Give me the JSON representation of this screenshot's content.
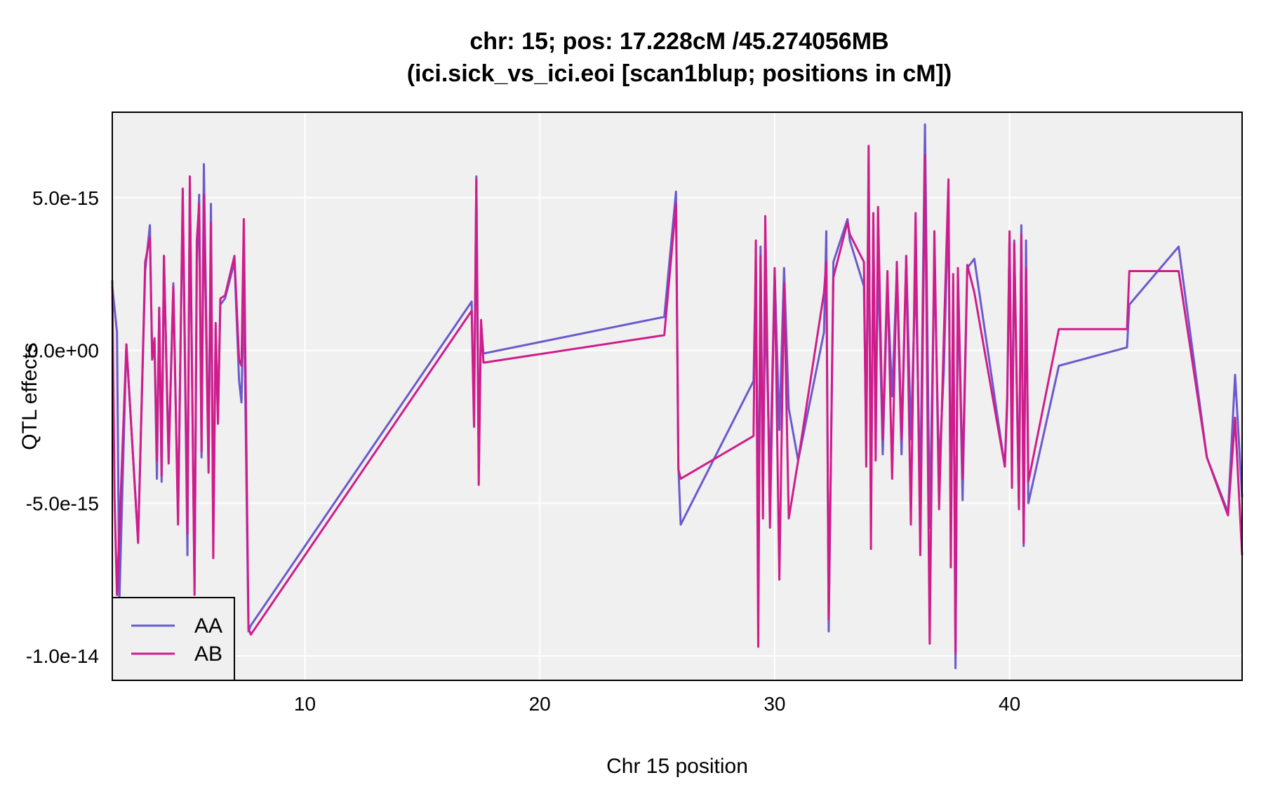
{
  "chart_data": {
    "type": "line",
    "title": "chr: 15; pos: 17.228cM /45.274056MB",
    "subtitle": "(ici.sick_vs_ici.eoi [scan1blup; positions in cM])",
    "xlabel": "Chr 15 position",
    "ylabel": "QTL effects",
    "xlim": [
      1.8,
      49.9
    ],
    "ylim": [
      -1.08e-14,
      7.8e-15
    ],
    "xticks": [
      10,
      20,
      30,
      40
    ],
    "xtick_labels": [
      "10",
      "20",
      "30",
      "40"
    ],
    "yticks": [
      5e-15,
      0,
      -5e-15,
      -1e-14
    ],
    "ytick_labels": [
      "5.0e-15",
      "0.0e+00",
      "-5.0e-15",
      "-1.0e-14"
    ],
    "grid": true,
    "legend_position": "bottom-left",
    "series": [
      {
        "name": "AA",
        "color": "#6a5acd",
        "x": [
          1.8,
          2.0,
          2.1,
          2.4,
          2.9,
          3.2,
          3.4,
          3.5,
          3.6,
          3.7,
          3.8,
          3.9,
          4.0,
          4.2,
          4.4,
          4.6,
          4.8,
          5.0,
          5.1,
          5.3,
          5.4,
          5.5,
          5.6,
          5.7,
          5.9,
          6.0,
          6.1,
          6.2,
          6.3,
          6.4,
          6.6,
          7.0,
          7.2,
          7.3,
          7.4,
          7.6,
          7.7,
          17.1,
          17.2,
          17.3,
          17.4,
          17.5,
          17.6,
          25.3,
          25.8,
          25.9,
          26.0,
          29.1,
          29.2,
          29.3,
          29.4,
          29.5,
          29.6,
          29.8,
          30.0,
          30.2,
          30.4,
          30.6,
          31.0,
          32.1,
          32.2,
          32.3,
          32.5,
          33.1,
          33.2,
          33.8,
          33.9,
          34.0,
          34.1,
          34.2,
          34.3,
          34.4,
          34.6,
          34.8,
          35.0,
          35.2,
          35.4,
          35.6,
          35.8,
          36.0,
          36.2,
          36.4,
          36.6,
          36.8,
          37.0,
          37.2,
          37.4,
          37.5,
          37.6,
          37.7,
          37.8,
          38.0,
          38.2,
          38.5,
          39.8,
          39.9,
          40.0,
          40.1,
          40.2,
          40.4,
          40.5,
          40.6,
          40.7,
          40.8,
          42.1,
          45.0,
          45.1,
          47.2,
          48.4,
          49.3,
          49.6,
          49.9
        ],
        "y": [
          2.1e-15,
          6e-16,
          -8.3e-15,
          2e-16,
          -6.2e-15,
          2.6e-15,
          4.1e-15,
          -3e-16,
          2e-16,
          -4.2e-15,
          1.4e-15,
          -4.3e-15,
          3.1e-15,
          -3.5e-15,
          2.2e-15,
          -5.5e-15,
          5e-15,
          -6.7e-15,
          5.5e-15,
          -7.7e-15,
          2.8e-15,
          5.1e-15,
          -3.5e-15,
          6.1e-15,
          -3.8e-15,
          4.8e-15,
          -6e-15,
          7e-16,
          -2.2e-15,
          1.5e-15,
          1.7e-15,
          2.9e-15,
          -1e-15,
          -1.7e-15,
          2.1e-15,
          -9.2e-15,
          -9e-15,
          1.6e-15,
          -2.2e-15,
          5.7e-15,
          -3.4e-15,
          9e-16,
          -1e-16,
          1.1e-15,
          5.2e-15,
          -3.8e-15,
          -5.7e-15,
          -1e-15,
          2.9e-15,
          -6.8e-15,
          3.4e-15,
          -5e-15,
          1.7e-15,
          -4.2e-15,
          2.6e-15,
          -2.6e-15,
          2.7e-15,
          -1.9e-15,
          -3.6e-15,
          6e-16,
          3.9e-15,
          -9.2e-15,
          2.9e-15,
          4.3e-15,
          3.6e-15,
          2.1e-15,
          -3e-15,
          6.1e-15,
          -5.6e-15,
          4.1e-15,
          -2.7e-15,
          3.2e-15,
          -3.4e-15,
          2.1e-15,
          -1.5e-15,
          2.6e-15,
          -3.4e-15,
          3.1e-15,
          -2.9e-15,
          2.6e-15,
          -4.7e-15,
          7.4e-15,
          -5.8e-15,
          2.9e-15,
          -3.9e-15,
          -7e-16,
          4.9e-15,
          -6.4e-15,
          2.2e-15,
          -1.04e-14,
          2.5e-15,
          -4.9e-15,
          2.7e-15,
          3e-15,
          -3.8e-15,
          -1.8e-15,
          3.8e-15,
          -3.5e-15,
          3.6e-15,
          -5.1e-15,
          4.1e-15,
          -6.4e-15,
          3.6e-15,
          -5e-15,
          -5e-16,
          1e-16,
          1.5e-15,
          3.4e-15,
          -3.5e-15,
          -5.3e-15,
          -8e-16,
          -4.8e-15
        ]
      },
      {
        "name": "AB",
        "color": "#d01c8b",
        "x": [
          1.8,
          1.9,
          2.0,
          2.4,
          2.9,
          3.2,
          3.4,
          3.5,
          3.6,
          3.7,
          3.8,
          3.9,
          4.0,
          4.2,
          4.4,
          4.6,
          4.8,
          5.0,
          5.1,
          5.3,
          5.4,
          5.5,
          5.6,
          5.7,
          5.9,
          6.0,
          6.1,
          6.2,
          6.3,
          6.4,
          6.6,
          7.0,
          7.2,
          7.3,
          7.4,
          7.6,
          7.7,
          17.1,
          17.2,
          17.3,
          17.4,
          17.5,
          17.6,
          25.3,
          25.8,
          25.9,
          26.0,
          29.1,
          29.2,
          29.3,
          29.4,
          29.5,
          29.6,
          29.8,
          30.0,
          30.2,
          30.4,
          30.6,
          31.0,
          32.1,
          32.2,
          32.3,
          32.5,
          33.1,
          33.2,
          33.8,
          33.9,
          34.0,
          34.1,
          34.2,
          34.3,
          34.4,
          34.6,
          34.8,
          35.0,
          35.2,
          35.4,
          35.6,
          35.8,
          36.0,
          36.2,
          36.4,
          36.6,
          36.8,
          37.0,
          37.2,
          37.4,
          37.5,
          37.6,
          37.7,
          37.8,
          38.0,
          38.2,
          38.5,
          39.8,
          39.9,
          40.0,
          40.1,
          40.2,
          40.4,
          40.5,
          40.6,
          40.7,
          40.8,
          42.1,
          45.0,
          45.1,
          47.2,
          48.4,
          49.3,
          49.6,
          49.9
        ],
        "y": [
          2.3e-15,
          -4.9e-15,
          -8e-15,
          2e-16,
          -6.3e-15,
          2.9e-15,
          3.7e-15,
          -3e-16,
          4e-16,
          -3.6e-15,
          1.4e-15,
          -4.1e-15,
          3.1e-15,
          -3.7e-15,
          2.1e-15,
          -5.7e-15,
          5.3e-15,
          -6e-15,
          5.7e-15,
          -8e-15,
          3.6e-15,
          4.8e-15,
          -3.3e-15,
          5.1e-15,
          -4e-15,
          4.2e-15,
          -6.8e-15,
          9e-16,
          -2.4e-15,
          1.7e-15,
          1.8e-15,
          3.1e-15,
          -3e-16,
          -5e-16,
          4.3e-15,
          -9.1e-15,
          -9.3e-15,
          1.3e-15,
          -2.5e-15,
          5.6e-15,
          -4.4e-15,
          1e-15,
          -4e-16,
          5e-16,
          4.8e-15,
          -3.9e-15,
          -4.2e-15,
          -2.8e-15,
          3.6e-15,
          -9.7e-15,
          3.1e-15,
          -5.5e-15,
          4.4e-15,
          -5.8e-15,
          2.7e-15,
          -7.5e-15,
          2.2e-15,
          -5.5e-15,
          -3.6e-15,
          1.9e-15,
          2.9e-15,
          -8.8e-15,
          2.4e-15,
          4.2e-15,
          3.8e-15,
          2.9e-15,
          -3.8e-15,
          6.7e-15,
          -6.5e-15,
          4.5e-15,
          -3.6e-15,
          4.7e-15,
          -2.9e-15,
          2.6e-15,
          -4.2e-15,
          2.9e-15,
          -2.9e-15,
          3.1e-15,
          -5.7e-15,
          4.5e-15,
          -6.7e-15,
          6.4e-15,
          -9.6e-15,
          3.9e-15,
          -5.2e-15,
          4e-16,
          5.6e-15,
          -7.1e-15,
          2.5e-15,
          -9.9e-15,
          2.7e-15,
          -4.2e-15,
          2.8e-15,
          1.9e-15,
          -3.8e-15,
          -1.5e-15,
          3.9e-15,
          -4.5e-15,
          3.5e-15,
          -5.2e-15,
          3.8e-15,
          -6.3e-15,
          2.7e-15,
          -4.3e-15,
          7e-16,
          7e-16,
          2.6e-15,
          2.6e-15,
          -3.5e-15,
          -5.4e-15,
          -2.2e-15,
          -6.7e-15
        ]
      }
    ]
  }
}
